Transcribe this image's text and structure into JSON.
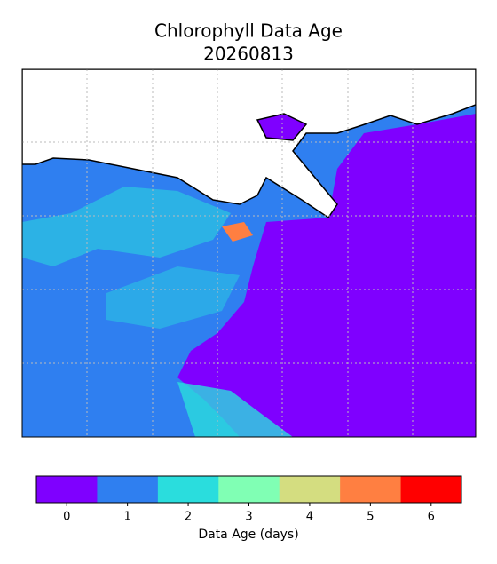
{
  "map": {
    "title": "Chlorophyll Data Age",
    "subtitle": "20260813"
  },
  "colorbar": {
    "label": "Data Age (days)",
    "ticks": [
      0,
      1,
      2,
      3,
      4,
      5,
      6
    ],
    "colors": [
      "#7f00ff",
      "#2f7ff0",
      "#2adddd",
      "#80ffb4",
      "#d4dd80",
      "#ff7f41",
      "#ff0000"
    ]
  }
}
